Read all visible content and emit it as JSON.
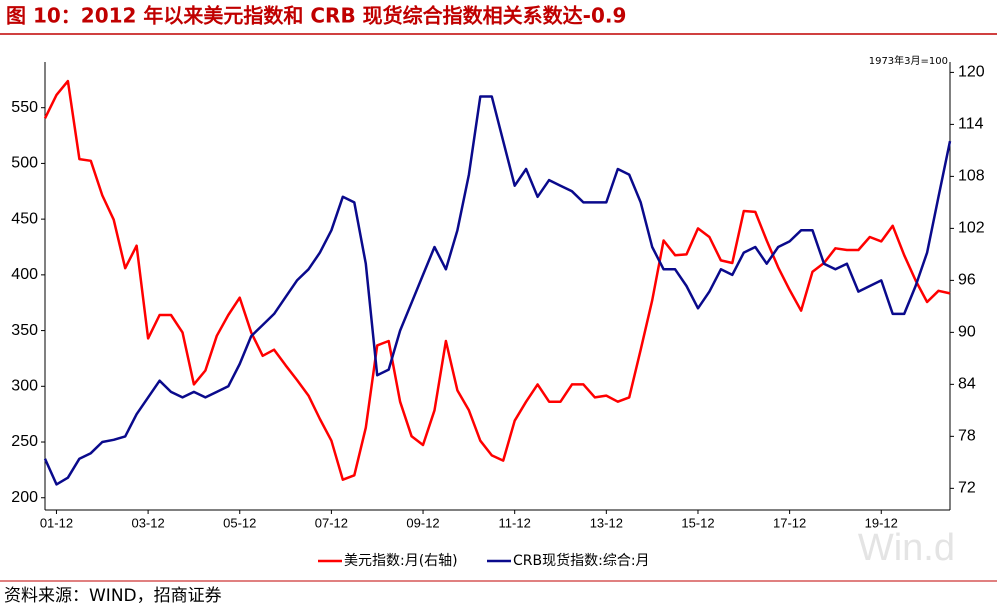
{
  "chart_data": {
    "type": "line",
    "title": "图 10：2012 年以来美元指数和 CRB 现货综合指数相关系数达-0.9",
    "note": "1973年3月=100",
    "source": "资料来源：WIND，招商证券",
    "watermark": "Win.d",
    "x": [
      "01-09",
      "01-12",
      "02-03",
      "02-06",
      "02-09",
      "02-12",
      "03-03",
      "03-06",
      "03-09",
      "03-12",
      "04-03",
      "04-06",
      "04-09",
      "04-12",
      "05-03",
      "05-06",
      "05-09",
      "05-12",
      "06-03",
      "06-06",
      "06-09",
      "06-12",
      "07-03",
      "07-06",
      "07-09",
      "07-12",
      "08-03",
      "08-06",
      "08-09",
      "08-12",
      "09-03",
      "09-06",
      "09-09",
      "09-12",
      "10-03",
      "10-06",
      "10-09",
      "10-12",
      "11-03",
      "11-06",
      "11-09",
      "11-12",
      "12-03",
      "12-06",
      "12-09",
      "12-12",
      "13-03",
      "13-06",
      "13-09",
      "13-12",
      "14-03",
      "14-06",
      "14-09",
      "14-12",
      "15-03",
      "15-06",
      "15-09",
      "15-12",
      "16-03",
      "16-06",
      "16-09",
      "16-12",
      "17-03",
      "17-06",
      "17-09",
      "17-12",
      "18-03",
      "18-06",
      "18-09",
      "18-12",
      "19-03",
      "19-06",
      "19-09",
      "19-12",
      "20-03",
      "20-06",
      "20-09",
      "20-12",
      "21-03",
      "21-06"
    ],
    "xlim": [
      "01-09",
      "21-06"
    ],
    "xticks": [
      "01-12",
      "03-12",
      "05-12",
      "07-12",
      "09-12",
      "11-12",
      "13-12",
      "15-12",
      "17-12",
      "19-12"
    ],
    "ylim": [
      189,
      591
    ],
    "yticks": [
      200,
      250,
      300,
      350,
      400,
      450,
      500,
      550
    ],
    "y2lim": [
      69.5,
      121.2
    ],
    "y2ticks": [
      72,
      78,
      84,
      90,
      96,
      102,
      108,
      114,
      120
    ],
    "series": [
      {
        "name": "美元指数:月(右轴)",
        "color": "#ff0000",
        "axis": "y2",
        "values": [
          114.7,
          117.4,
          119,
          110,
          109.8,
          105.8,
          103,
          97.4,
          100,
          89.3,
          92,
          92,
          90,
          84,
          85.6,
          89.6,
          92,
          94,
          90,
          87.3,
          88,
          86.2,
          84.5,
          82.7,
          80,
          77.5,
          73,
          73.5,
          79,
          88.5,
          89,
          82,
          78,
          77,
          81,
          89,
          83.3,
          81,
          77.5,
          75.8,
          75.2,
          79.8,
          82,
          84,
          82,
          82,
          84,
          84,
          82.5,
          82.7,
          82,
          82.5,
          88,
          93.7,
          100.6,
          98.9,
          99,
          102,
          101,
          98.3,
          98,
          104,
          103.9,
          100.6,
          97.5,
          94.9,
          92.5,
          97,
          98,
          99.7,
          99.5,
          99.5,
          101,
          100.5,
          102.3,
          98.9,
          96,
          93.5,
          94.8,
          94.5
        ]
      },
      {
        "name": "CRB现货指数:综合:月",
        "color": "#0a0a8c",
        "values": [
          235,
          212,
          218,
          235,
          240,
          250,
          252,
          255,
          275,
          290,
          305,
          295,
          290,
          295,
          290,
          295,
          300,
          320,
          345,
          355,
          365,
          380,
          395,
          405,
          420,
          440,
          470,
          465,
          410,
          310,
          315,
          350,
          375,
          400,
          425,
          405,
          440,
          490,
          560,
          560,
          520,
          480,
          495,
          470,
          485,
          480,
          475,
          465,
          465,
          465,
          495,
          490,
          465,
          425,
          405,
          405,
          390,
          370,
          385,
          405,
          400,
          420,
          425,
          410,
          425,
          430,
          440,
          440,
          410,
          405,
          410,
          385,
          390,
          395,
          365,
          365,
          390,
          420,
          470,
          520
        ]
      }
    ]
  }
}
